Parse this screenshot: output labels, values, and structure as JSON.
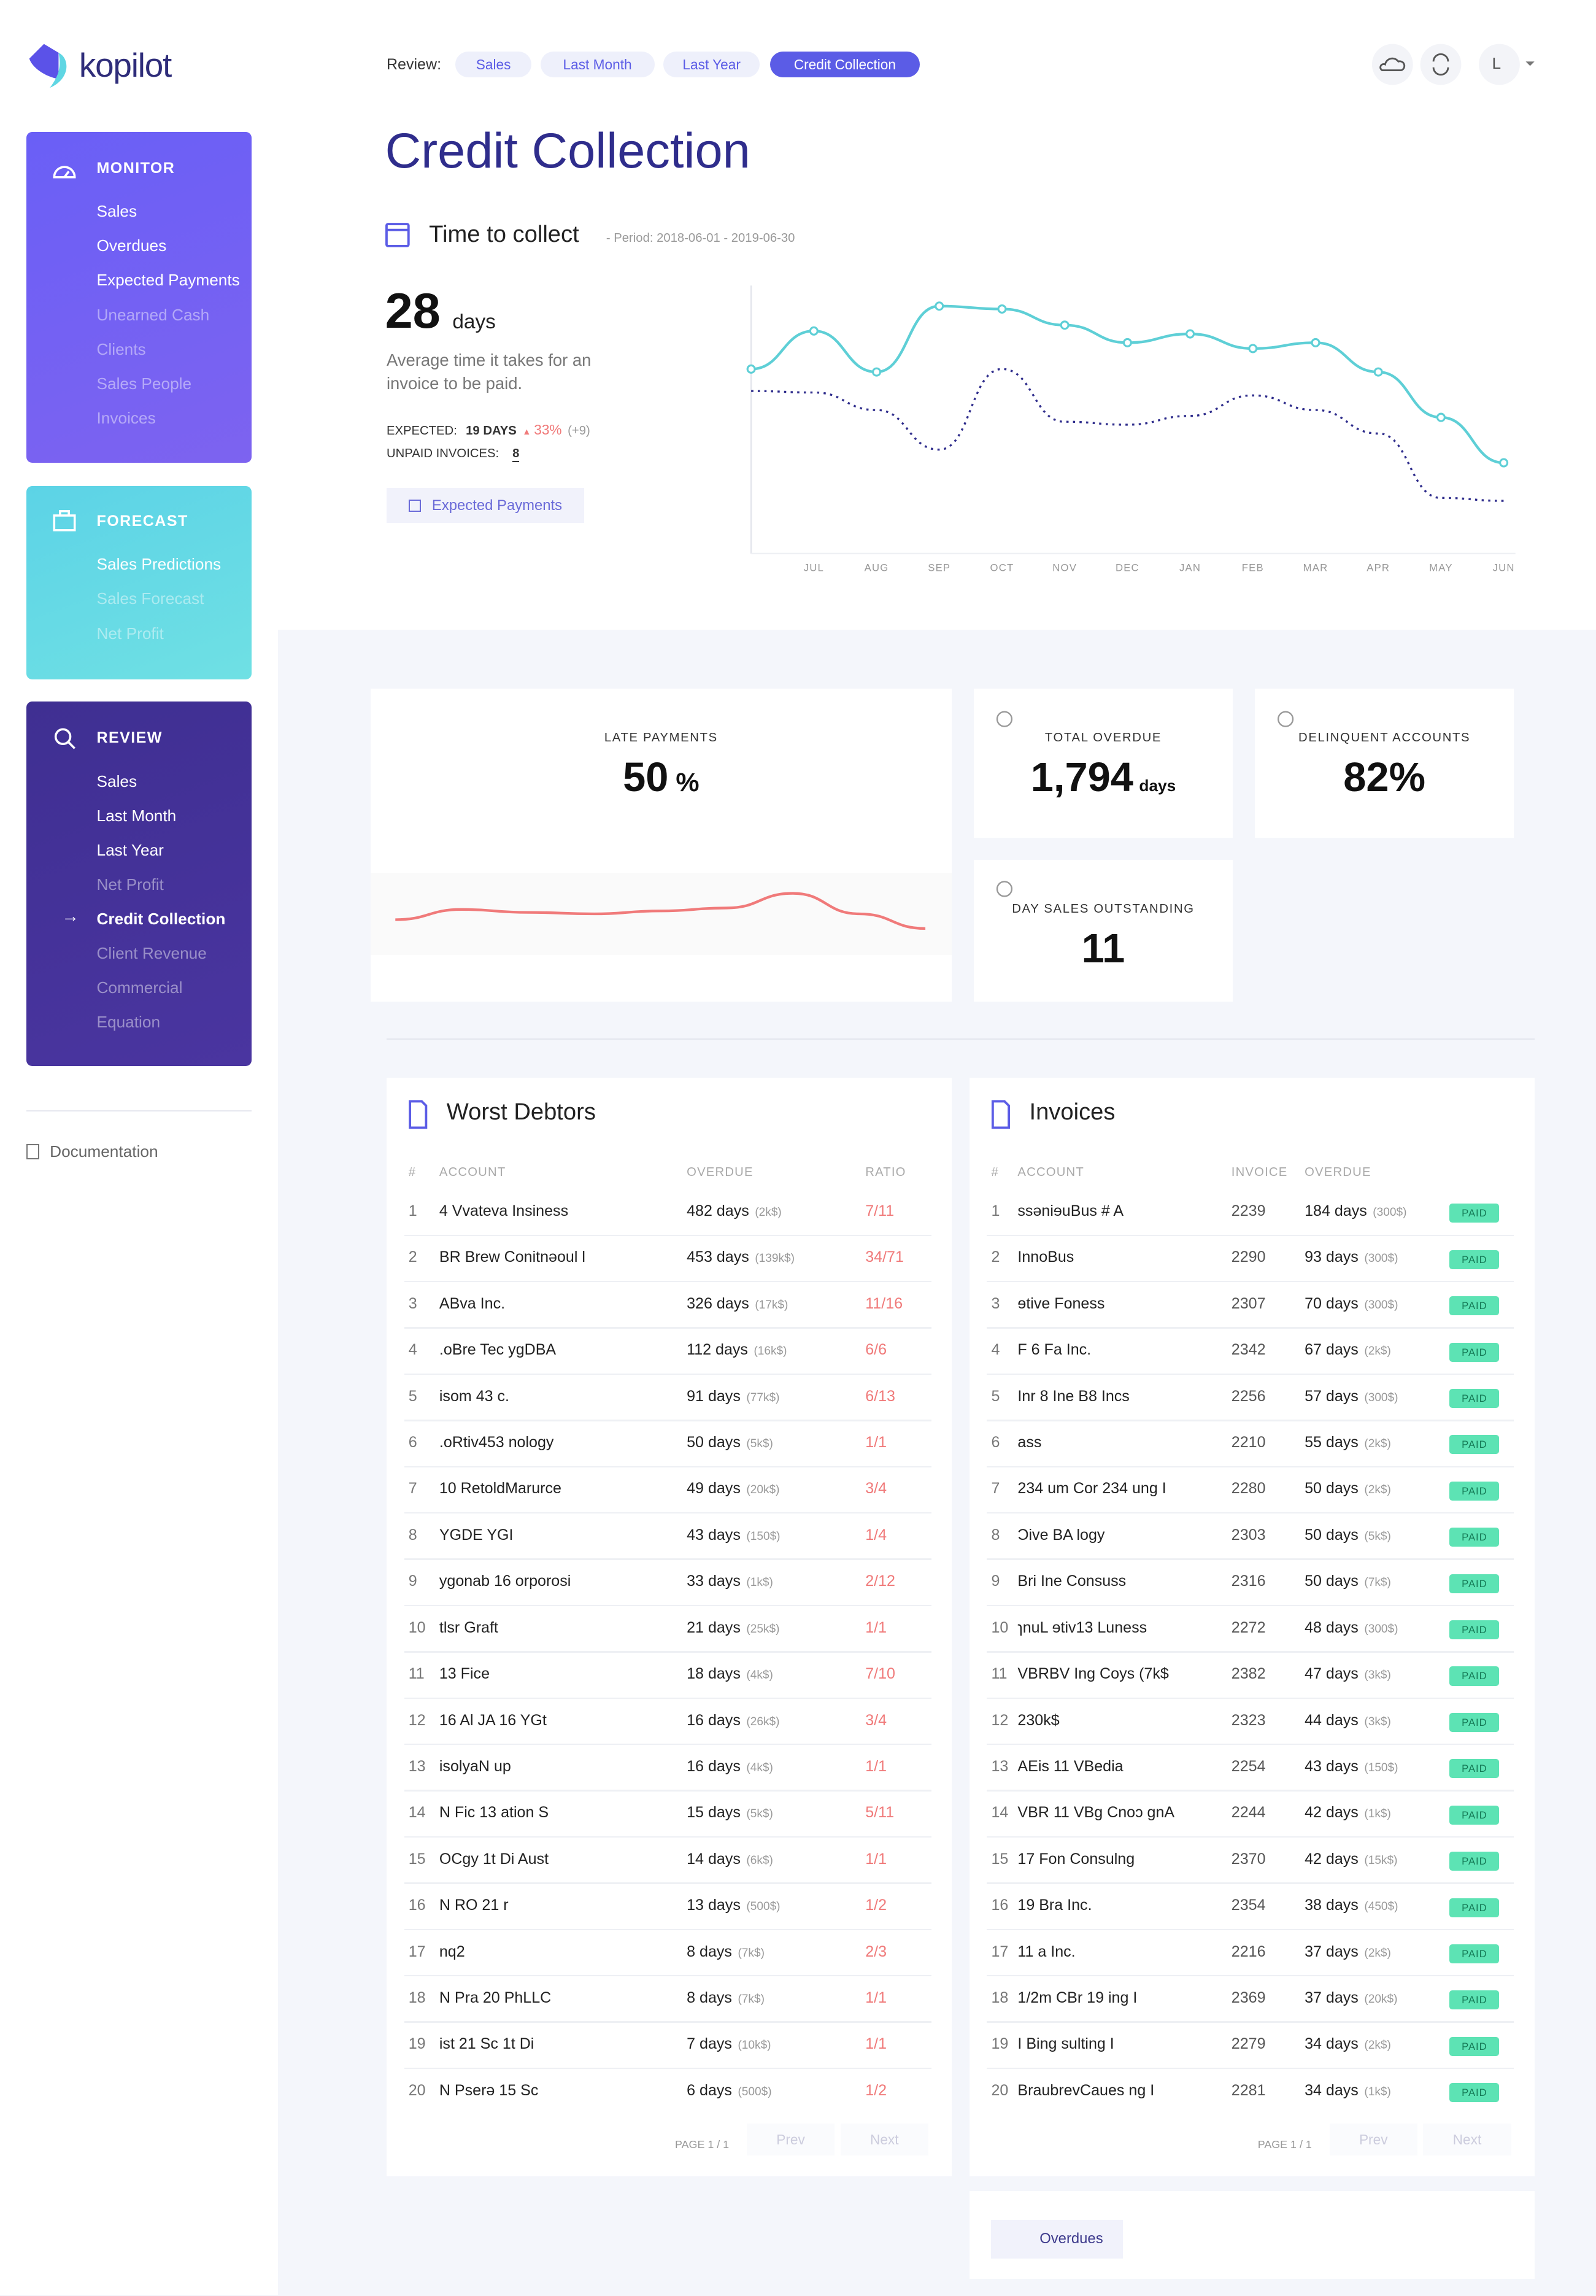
{
  "sidebar": {
    "brand": "kopilot",
    "sections": [
      {
        "title": "MONITOR",
        "items": [
          {
            "label": "Sales"
          },
          {
            "label": "Overdues"
          },
          {
            "label": "Expected Payments"
          },
          {
            "label": "Unearned Cash",
            "dim": true
          },
          {
            "label": "Clients",
            "dim": true
          },
          {
            "label": "Sales People",
            "dim": true
          },
          {
            "label": "Invoices",
            "dim": true
          }
        ]
      },
      {
        "title": "FORECAST",
        "items": [
          {
            "label": "Sales Predictions"
          },
          {
            "label": "Sales Forecast",
            "dim": true
          },
          {
            "label": "Net Profit",
            "dim": true
          }
        ]
      },
      {
        "title": "REVIEW",
        "items": [
          {
            "label": "Sales"
          },
          {
            "label": "Last Month"
          },
          {
            "label": "Last Year"
          },
          {
            "label": "Net Profit",
            "dim": true
          },
          {
            "label": "Credit Collection",
            "active": true
          },
          {
            "label": "Client Revenue",
            "dim": true
          },
          {
            "label": "Commercial",
            "dim": true
          },
          {
            "label": "Equation",
            "dim": true
          }
        ]
      }
    ],
    "documentation": "Documentation"
  },
  "header": {
    "label": "Review:",
    "pills": [
      "Sales",
      "Last Month",
      "Last Year",
      "Credit Collection"
    ],
    "active_pill": 3,
    "user": "L"
  },
  "title": "Credit Collection",
  "collect": {
    "title": "Time to collect",
    "period": "- Period: 2018-06-01 - 2019-06-30",
    "value": "28",
    "unit": "days",
    "description": "Average time it takes for an invoice to be paid.",
    "expected_label": "EXPECTED:",
    "expected_value": "19 DAYS",
    "expected_change": "33%",
    "expected_delta": "(+9)",
    "unpaid_label": "UNPAID INVOICES:",
    "unpaid_value": "8",
    "button": "Expected Payments"
  },
  "chart_data": [
    {
      "type": "line",
      "categories": [
        null,
        "JUL",
        "AUG",
        "SEP",
        "OCT",
        "NOV",
        "DEC",
        "JAN",
        "FEB",
        "MAR",
        "APR",
        "MAY",
        "JUN"
      ],
      "series": [
        {
          "color": "#5ecfd6",
          "values": [
            126,
            152,
            124,
            169,
            167,
            156,
            144,
            150,
            140,
            144,
            124,
            93,
            62
          ]
        },
        {
          "color": "#2f2d8c",
          "values": [
            111,
            110,
            98,
            71,
            126,
            90,
            88,
            94,
            108,
            98,
            82,
            38,
            36
          ]
        }
      ],
      "ylim": [
        0,
        183
      ]
    },
    {
      "type": "line",
      "categories": [
        null,
        null,
        null,
        null,
        null,
        null,
        null,
        null,
        null
      ],
      "series": [
        {
          "color": "#f07a7a",
          "values": [
            22,
            29,
            27,
            26,
            28,
            30,
            40,
            26,
            16
          ]
        }
      ],
      "ylim": [
        0,
        52
      ]
    }
  ],
  "kpis": [
    {
      "label": "LATE PAYMENTS",
      "value": "50",
      "unit": "%"
    },
    {
      "label": "TOTAL OVERDUE",
      "value": "1,794",
      "unit": "days"
    },
    {
      "label": "DELINQUENT ACCOUNTS",
      "value": "82",
      "unit": "%"
    },
    {
      "label": "DAY SALES OUTSTANDING",
      "value": "11"
    }
  ],
  "debtors": {
    "title": "Worst Debtors",
    "columns": [
      "#",
      "ACCOUNT",
      "OVERDUE",
      "RATIO"
    ],
    "rows": [
      [
        "1",
        "4 Vvateva Insiness",
        "482 days",
        "(2k$)",
        "7/11"
      ],
      [
        "2",
        "BR Brew Conitnəoul l",
        "453 days",
        "(139k$)",
        "34/71"
      ],
      [
        "3",
        "ABva Inc.",
        "326 days",
        "(17k$)",
        "11/16"
      ],
      [
        "4",
        ".oBre Tec ygDBA",
        "112 days",
        "(16k$)",
        "6/6"
      ],
      [
        "5",
        "isom 43 c.",
        "91 days",
        "(77k$)",
        "6/13"
      ],
      [
        "6",
        ".oRtiv453 nology",
        "50 days",
        "(5k$)",
        "1/1"
      ],
      [
        "7",
        "10 RetoldMarurce",
        "49 days",
        "(20k$)",
        "3/4"
      ],
      [
        "8",
        "YGDE YGI",
        "43 days",
        "(150$)",
        "1/4"
      ],
      [
        "9",
        "ygonab 16 orporosi",
        "33 days",
        "(1k$)",
        "2/12"
      ],
      [
        "10",
        "tlsr Graft",
        "21 days",
        "(25k$)",
        "1/1"
      ],
      [
        "11",
        "13 Fice",
        "18 days",
        "(4k$)",
        "7/10"
      ],
      [
        "12",
        "16 Al JA 16 YGt",
        "16 days",
        "(26k$)",
        "3/4"
      ],
      [
        "13",
        "isolyaN up",
        "16 days",
        "(4k$)",
        "1/1"
      ],
      [
        "14",
        "N Fic 13 ation S",
        "15 days",
        "(5k$)",
        "5/11"
      ],
      [
        "15",
        "OCgy 1t Di Aust",
        "14 days",
        "(6k$)",
        "1/1"
      ],
      [
        "16",
        "N RO 21 r",
        "13 days",
        "(500$)",
        "1/2"
      ],
      [
        "17",
        "nq2",
        "8 days",
        "(7k$)",
        "2/3"
      ],
      [
        "18",
        "N Pra 20 PhLLC",
        "8 days",
        "(7k$)",
        "1/1"
      ],
      [
        "19",
        "ist 21 Sc 1t Di",
        "7 days",
        "(10k$)",
        "1/1"
      ],
      [
        "20",
        "N Pserə 15 Sc",
        "6 days",
        "(500$)",
        "1/2"
      ]
    ],
    "page": "PAGE 1 / 1",
    "prev": "Prev",
    "next": "Next"
  },
  "invoices": {
    "title": "Invoices",
    "columns": [
      "#",
      "ACCOUNT",
      "INVOICE",
      "OVERDUE"
    ],
    "status": "PAID",
    "rows": [
      [
        "1",
        "ssəniɘuBus # A",
        "2239",
        "184 days",
        "(300$)"
      ],
      [
        "2",
        "InnoBus",
        "2290",
        "93 days",
        "(300$)"
      ],
      [
        "3",
        "ɘtive Foness",
        "2307",
        "70 days",
        "(300$)"
      ],
      [
        "4",
        "F 6 Fa Inc.",
        "2342",
        "67 days",
        "(2k$)"
      ],
      [
        "5",
        "Inr 8 Ine B8 Incs",
        "2256",
        "57 days",
        "(300$)"
      ],
      [
        "6",
        "ass",
        "2210",
        "55 days",
        "(2k$)"
      ],
      [
        "7",
        "234 um Cor 234 ung I",
        "2280",
        "50 days",
        "(2k$)"
      ],
      [
        "8",
        "Ɔive BA logy",
        "2303",
        "50 days",
        "(5k$)"
      ],
      [
        "9",
        "Bri Ine Consuss",
        "2316",
        "50 days",
        "(7k$)"
      ],
      [
        "10",
        "ɿnuL ɘtiv13 Luness",
        "2272",
        "48 days",
        "(300$)"
      ],
      [
        "11",
        "VBRBV Ing Coys (7k$",
        "2382",
        "47 days",
        "(3k$)"
      ],
      [
        "12",
        "230k$",
        "2323",
        "44 days",
        "(3k$)"
      ],
      [
        "13",
        "AEis 11 VBedia",
        "2254",
        "43 days",
        "(150$)"
      ],
      [
        "14",
        "VBR 11 VBg Cnoɔ gnA",
        "2244",
        "42 days",
        "(1k$)"
      ],
      [
        "15",
        "17 Fon Consulng",
        "2370",
        "42 days",
        "(15k$)"
      ],
      [
        "16",
        "19 Bra Inc.",
        "2354",
        "38 days",
        "(450$)"
      ],
      [
        "17",
        "11 a Inc.",
        "2216",
        "37 days",
        "(2k$)"
      ],
      [
        "18",
        "1/2m CBr 19 ing I",
        "2369",
        "37 days",
        "(20k$)"
      ],
      [
        "19",
        "I Bing sulting I",
        "2279",
        "34 days",
        "(2k$)"
      ],
      [
        "20",
        "BraubrevCaues ng I",
        "2281",
        "34 days",
        "(1k$)"
      ]
    ],
    "page": "PAGE 1 / 1",
    "prev": "Prev",
    "next": "Next",
    "button": "Overdues"
  }
}
